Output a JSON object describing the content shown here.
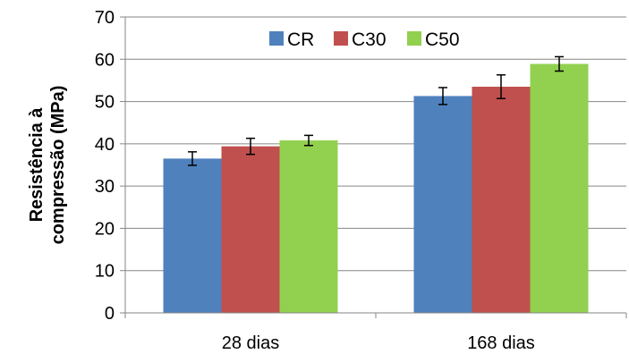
{
  "chart_data": {
    "type": "bar",
    "categories": [
      "28 dias",
      "168 dias"
    ],
    "series": [
      {
        "name": "CR",
        "values": [
          36.5,
          51.3
        ],
        "errors": [
          1.6,
          2.0
        ],
        "color": "#4F81BD"
      },
      {
        "name": "C30",
        "values": [
          39.4,
          53.5
        ],
        "errors": [
          1.9,
          2.8
        ],
        "color": "#C0504D"
      },
      {
        "name": "C50",
        "values": [
          40.8,
          58.9
        ],
        "errors": [
          1.2,
          1.7
        ],
        "color": "#92D050"
      }
    ],
    "title": "",
    "xlabel": "",
    "ylabel": [
      "Resistência à",
      "compressão (MPa)"
    ],
    "ylim": [
      0,
      70
    ],
    "yticks": [
      0,
      10,
      20,
      30,
      40,
      50,
      60,
      70
    ],
    "grid": true,
    "legend": "top-center"
  }
}
